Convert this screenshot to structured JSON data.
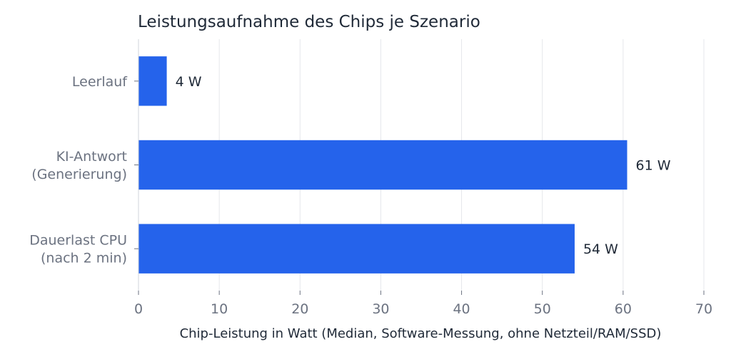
{
  "chart_data": {
    "type": "bar",
    "orientation": "horizontal",
    "title": "Leistungsaufnahme des Chips je Szenario",
    "xlabel": "Chip-Leistung in Watt (Median, Software-Messung, ohne Netzteil/RAM/SSD)",
    "ylabel": "",
    "categories": [
      [
        "Leerlauf"
      ],
      [
        "KI-Antwort",
        "(Generierung)"
      ],
      [
        "Dauerlast CPU",
        "(nach 2 min)"
      ]
    ],
    "values": [
      3.5,
      60.5,
      54
    ],
    "data_labels": [
      "4 W",
      "61 W",
      "54 W"
    ],
    "xlim": [
      0,
      70
    ],
    "xticks": [
      "0",
      "10",
      "20",
      "30",
      "40",
      "50",
      "60",
      "70"
    ],
    "grid": "vertical",
    "bar_color": "#2563eb"
  }
}
